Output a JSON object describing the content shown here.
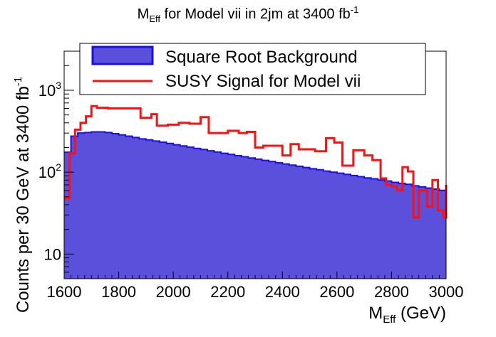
{
  "colors": {
    "background_fill": "#5a50dc",
    "background_line": "#1a10e6",
    "signal_line": "#ff1010",
    "axis": "#000000"
  },
  "chart_data": {
    "type": "histogram",
    "title": {
      "base": "M",
      "base_sub": "Eff",
      "mid": " for Model vii in 2jm at 3400 fb",
      "sup": "-1"
    },
    "xlabel": {
      "base": "M",
      "sub": "Eff",
      "rest": " (GeV)"
    },
    "ylabel": {
      "text": "Counts per 30 GeV at 3400 fb",
      "sup": "-1"
    },
    "xlim": [
      1600,
      3000
    ],
    "ylim": [
      5,
      3000
    ],
    "yscale": "log",
    "x_ticks": [
      "1600",
      "1800",
      "2000",
      "2200",
      "2400",
      "2600",
      "2800",
      "3000"
    ],
    "x_tick_values": [
      1600,
      1800,
      2000,
      2200,
      2400,
      2600,
      2800,
      3000
    ],
    "y_ticks": [
      {
        "value": 10,
        "base": "10",
        "sup": ""
      },
      {
        "value": 100,
        "base": "10",
        "sup": "2"
      },
      {
        "value": 1000,
        "base": "10",
        "sup": "3"
      }
    ],
    "legend": {
      "position": "top",
      "entries": [
        {
          "label": "Square Root Background",
          "style": "fill"
        },
        {
          "label": "SUSY Signal for Model vii",
          "style": "line"
        }
      ]
    },
    "bin_edges": [
      1600,
      1625,
      1650,
      1675,
      1700,
      1725,
      1750,
      1775,
      1800,
      1825,
      1850,
      1875,
      1900,
      1925,
      1950,
      1975,
      2000,
      2025,
      2050,
      2075,
      2100,
      2125,
      2150,
      2175,
      2200,
      2225,
      2250,
      2275,
      2300,
      2325,
      2350,
      2375,
      2400,
      2425,
      2450,
      2475,
      2500,
      2525,
      2550,
      2575,
      2600,
      2625,
      2650,
      2675,
      2700,
      2725,
      2750,
      2775,
      2800,
      2825,
      2850,
      2875,
      2900,
      2925,
      2950,
      2975,
      3000
    ],
    "series": [
      {
        "name": "Square Root Background",
        "values": [
          175,
          275,
          300,
          305,
          310,
          310,
          305,
          295,
          285,
          275,
          265,
          255,
          248,
          240,
          232,
          224,
          216,
          209,
          202,
          195,
          189,
          182,
          176,
          170,
          165,
          159,
          154,
          149,
          144,
          139,
          135,
          130,
          126,
          122,
          118,
          114,
          110,
          107,
          103,
          100,
          97,
          94,
          91,
          88,
          85,
          83,
          80,
          78,
          75,
          73,
          71,
          68,
          66,
          64,
          62,
          60
        ]
      },
      {
        "name": "SUSY Signal for Model vii",
        "values": [
          48,
          170,
          330,
          400,
          480,
          640,
          610,
          600,
          600,
          600,
          460,
          510,
          370,
          380,
          400,
          390,
          470,
          300,
          300,
          320,
          300,
          310,
          200,
          210,
          210,
          160,
          220,
          190,
          190,
          180,
          260,
          230,
          120,
          185,
          160,
          140,
          84,
          70,
          67,
          60,
          115,
          102,
          28,
          60,
          38,
          80,
          34,
          28,
          70
        ]
      }
    ],
    "signal_bin_edges": [
      1600,
      1620,
      1640,
      1660,
      1680,
      1700,
      1720,
      1760,
      1800,
      1840,
      1880,
      1920,
      1940,
      1980,
      2020,
      2060,
      2100,
      2130,
      2160,
      2200,
      2240,
      2270,
      2300,
      2330,
      2370,
      2400,
      2430,
      2460,
      2490,
      2520,
      2560,
      2590,
      2620,
      2660,
      2700,
      2730,
      2760,
      2780,
      2800,
      2820,
      2840,
      2860,
      2880,
      2900,
      2930,
      2950,
      2970,
      2990,
      3010,
      3030
    ]
  }
}
